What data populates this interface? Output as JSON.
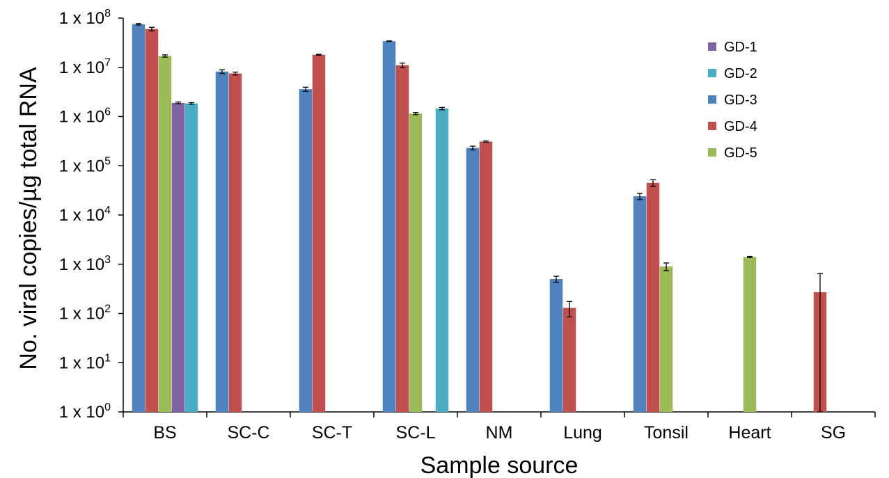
{
  "chart_data": {
    "type": "bar",
    "title": "",
    "xlabel": "Sample source",
    "ylabel": "No. viral copies/µg total RNA",
    "y_scale": "log",
    "ylim": [
      1,
      100000000
    ],
    "y_ticks": [
      {
        "value": 1,
        "base": "1 x 10",
        "exp": "0"
      },
      {
        "value": 10,
        "base": "1 x 10",
        "exp": "1"
      },
      {
        "value": 100,
        "base": "1 x 10",
        "exp": "2"
      },
      {
        "value": 1000,
        "base": "1 x 10",
        "exp": "3"
      },
      {
        "value": 10000,
        "base": "1 x 10",
        "exp": "4"
      },
      {
        "value": 100000,
        "base": "1 x 10",
        "exp": "5"
      },
      {
        "value": 1000000,
        "base": "1 x 10",
        "exp": "6"
      },
      {
        "value": 10000000,
        "base": "1 x 10",
        "exp": "7"
      },
      {
        "value": 100000000,
        "base": "1 x 10",
        "exp": "8"
      }
    ],
    "categories": [
      "BS",
      "SC-C",
      "SC-T",
      "SC-L",
      "NM",
      "Lung",
      "Tonsil",
      "Heart",
      "SG"
    ],
    "bar_order": [
      "GD-3",
      "GD-4",
      "GD-5",
      "GD-1",
      "GD-2"
    ],
    "legend_order": [
      "GD-1",
      "GD-2",
      "GD-3",
      "GD-4",
      "GD-5"
    ],
    "legend_position": "top-right",
    "grid": false,
    "series": [
      {
        "name": "GD-1",
        "color": "#8064A2",
        "values": [
          1900000,
          null,
          null,
          null,
          null,
          null,
          null,
          null,
          null
        ],
        "errors": [
          80000,
          null,
          null,
          null,
          null,
          null,
          null,
          null,
          null
        ]
      },
      {
        "name": "GD-2",
        "color": "#4BACC6",
        "values": [
          1850000,
          null,
          null,
          1450000,
          null,
          null,
          null,
          null,
          null
        ],
        "errors": [
          70000,
          null,
          null,
          80000,
          null,
          null,
          null,
          null,
          null
        ]
      },
      {
        "name": "GD-3",
        "color": "#4F81BD",
        "values": [
          75000000,
          8200000,
          3600000,
          34000000,
          230000,
          500,
          24000,
          null,
          null
        ],
        "errors": [
          2500000,
          700000,
          350000,
          400000,
          20000,
          70,
          3500,
          null,
          null
        ]
      },
      {
        "name": "GD-4",
        "color": "#C0504D",
        "values": [
          60000000,
          7500000,
          18000000,
          11000000,
          310000,
          130,
          45000,
          null,
          270
        ],
        "errors": [
          5000000,
          500000,
          400000,
          1200000,
          10000,
          45,
          7000,
          null,
          380
        ]
      },
      {
        "name": "GD-5",
        "color": "#9BBB59",
        "values": [
          17000000,
          null,
          null,
          1150000,
          null,
          null,
          900,
          1400,
          null
        ],
        "errors": [
          900000,
          null,
          null,
          60000,
          null,
          null,
          160,
          40,
          null
        ]
      }
    ]
  }
}
